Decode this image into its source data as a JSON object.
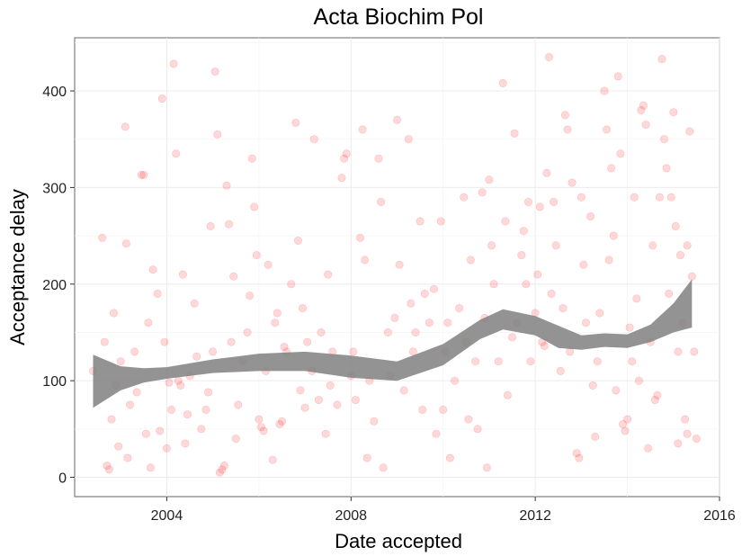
{
  "chart_data": {
    "type": "scatter",
    "title": "Acta Biochim Pol",
    "xlabel": "Date accepted",
    "ylabel": "Acceptance delay",
    "xlim": [
      2002.0,
      2016.0
    ],
    "ylim": [
      -20,
      455
    ],
    "x_ticks": [
      2004,
      2008,
      2012,
      2016
    ],
    "y_ticks": [
      0,
      100,
      200,
      300,
      400
    ],
    "grid": true,
    "legend": "none",
    "point_color": "#ff0000",
    "point_opacity": 0.15,
    "smooth_color": "#808080",
    "smooth": {
      "x": [
        2002.4,
        2003.0,
        2003.5,
        2004.0,
        2005.0,
        2006.0,
        2007.0,
        2008.0,
        2009.0,
        2010.0,
        2010.8,
        2011.3,
        2012.0,
        2012.5,
        2013.0,
        2013.5,
        2014.0,
        2014.5,
        2015.0,
        2015.4
      ],
      "lower": [
        72,
        90,
        98,
        102,
        108,
        110,
        110,
        103,
        100,
        116,
        143,
        153,
        147,
        134,
        132,
        135,
        134,
        140,
        150,
        155
      ],
      "upper": [
        127,
        115,
        113,
        114,
        122,
        128,
        130,
        126,
        120,
        138,
        163,
        174,
        167,
        157,
        147,
        149,
        148,
        158,
        180,
        205
      ]
    },
    "points": [
      [
        2002.4,
        110
      ],
      [
        2002.6,
        248
      ],
      [
        2002.65,
        140
      ],
      [
        2002.7,
        12
      ],
      [
        2002.75,
        8
      ],
      [
        2002.8,
        60
      ],
      [
        2002.85,
        170
      ],
      [
        2002.9,
        95
      ],
      [
        2002.95,
        32
      ],
      [
        2003.0,
        120
      ],
      [
        2003.1,
        363
      ],
      [
        2003.12,
        242
      ],
      [
        2003.15,
        20
      ],
      [
        2003.2,
        75
      ],
      [
        2003.3,
        130
      ],
      [
        2003.35,
        88
      ],
      [
        2003.45,
        313
      ],
      [
        2003.5,
        313
      ],
      [
        2003.55,
        45
      ],
      [
        2003.6,
        160
      ],
      [
        2003.65,
        10
      ],
      [
        2003.7,
        215
      ],
      [
        2003.8,
        190
      ],
      [
        2003.85,
        48
      ],
      [
        2003.9,
        392
      ],
      [
        2003.95,
        140
      ],
      [
        2004.0,
        30
      ],
      [
        2004.05,
        98
      ],
      [
        2004.1,
        70
      ],
      [
        2004.15,
        428
      ],
      [
        2004.2,
        335
      ],
      [
        2004.25,
        100
      ],
      [
        2004.3,
        95
      ],
      [
        2004.35,
        210
      ],
      [
        2004.4,
        35
      ],
      [
        2004.45,
        65
      ],
      [
        2004.5,
        105
      ],
      [
        2004.6,
        180
      ],
      [
        2004.65,
        125
      ],
      [
        2004.75,
        50
      ],
      [
        2004.85,
        70
      ],
      [
        2004.9,
        88
      ],
      [
        2004.95,
        260
      ],
      [
        2005.0,
        130
      ],
      [
        2005.05,
        420
      ],
      [
        2005.1,
        355
      ],
      [
        2005.15,
        5
      ],
      [
        2005.2,
        8
      ],
      [
        2005.25,
        12
      ],
      [
        2005.3,
        302
      ],
      [
        2005.35,
        262
      ],
      [
        2005.4,
        140
      ],
      [
        2005.45,
        208
      ],
      [
        2005.5,
        40
      ],
      [
        2005.55,
        75
      ],
      [
        2005.65,
        120
      ],
      [
        2005.75,
        150
      ],
      [
        2005.8,
        188
      ],
      [
        2005.85,
        330
      ],
      [
        2005.9,
        280
      ],
      [
        2005.95,
        230
      ],
      [
        2006.0,
        60
      ],
      [
        2006.05,
        52
      ],
      [
        2006.1,
        48
      ],
      [
        2006.15,
        110
      ],
      [
        2006.2,
        220
      ],
      [
        2006.3,
        18
      ],
      [
        2006.35,
        160
      ],
      [
        2006.4,
        170
      ],
      [
        2006.45,
        55
      ],
      [
        2006.5,
        58
      ],
      [
        2006.55,
        135
      ],
      [
        2006.6,
        130
      ],
      [
        2006.7,
        200
      ],
      [
        2006.8,
        367
      ],
      [
        2006.85,
        245
      ],
      [
        2006.9,
        90
      ],
      [
        2006.95,
        175
      ],
      [
        2007.0,
        72
      ],
      [
        2007.05,
        140
      ],
      [
        2007.15,
        110
      ],
      [
        2007.2,
        350
      ],
      [
        2007.3,
        80
      ],
      [
        2007.35,
        150
      ],
      [
        2007.45,
        45
      ],
      [
        2007.5,
        210
      ],
      [
        2007.55,
        95
      ],
      [
        2007.6,
        130
      ],
      [
        2007.7,
        75
      ],
      [
        2007.8,
        310
      ],
      [
        2007.85,
        330
      ],
      [
        2007.9,
        335
      ],
      [
        2008.0,
        105
      ],
      [
        2008.05,
        130
      ],
      [
        2008.1,
        80
      ],
      [
        2008.2,
        248
      ],
      [
        2008.25,
        360
      ],
      [
        2008.3,
        225
      ],
      [
        2008.35,
        20
      ],
      [
        2008.4,
        100
      ],
      [
        2008.5,
        58
      ],
      [
        2008.6,
        330
      ],
      [
        2008.65,
        285
      ],
      [
        2008.7,
        10
      ],
      [
        2008.8,
        150
      ],
      [
        2008.85,
        105
      ],
      [
        2008.95,
        165
      ],
      [
        2009.0,
        370
      ],
      [
        2009.05,
        220
      ],
      [
        2009.15,
        90
      ],
      [
        2009.25,
        350
      ],
      [
        2009.3,
        180
      ],
      [
        2009.35,
        130
      ],
      [
        2009.4,
        150
      ],
      [
        2009.5,
        265
      ],
      [
        2009.55,
        70
      ],
      [
        2009.6,
        190
      ],
      [
        2009.7,
        160
      ],
      [
        2009.8,
        195
      ],
      [
        2009.85,
        45
      ],
      [
        2009.95,
        265
      ],
      [
        2010.0,
        70
      ],
      [
        2010.05,
        130
      ],
      [
        2010.1,
        160
      ],
      [
        2010.15,
        20
      ],
      [
        2010.25,
        100
      ],
      [
        2010.35,
        175
      ],
      [
        2010.45,
        290
      ],
      [
        2010.5,
        140
      ],
      [
        2010.55,
        60
      ],
      [
        2010.6,
        225
      ],
      [
        2010.7,
        120
      ],
      [
        2010.75,
        50
      ],
      [
        2010.85,
        295
      ],
      [
        2010.9,
        165
      ],
      [
        2010.95,
        10
      ],
      [
        2011.0,
        308
      ],
      [
        2011.05,
        240
      ],
      [
        2011.1,
        200
      ],
      [
        2011.2,
        120
      ],
      [
        2011.3,
        408
      ],
      [
        2011.35,
        265
      ],
      [
        2011.4,
        85
      ],
      [
        2011.5,
        145
      ],
      [
        2011.55,
        356
      ],
      [
        2011.6,
        160
      ],
      [
        2011.7,
        230
      ],
      [
        2011.75,
        255
      ],
      [
        2011.8,
        200
      ],
      [
        2011.85,
        285
      ],
      [
        2011.9,
        120
      ],
      [
        2012.0,
        170
      ],
      [
        2012.05,
        210
      ],
      [
        2012.1,
        280
      ],
      [
        2012.15,
        140
      ],
      [
        2012.2,
        136
      ],
      [
        2012.25,
        315
      ],
      [
        2012.3,
        435
      ],
      [
        2012.35,
        190
      ],
      [
        2012.4,
        285
      ],
      [
        2012.45,
        240
      ],
      [
        2012.55,
        110
      ],
      [
        2012.6,
        175
      ],
      [
        2012.65,
        375
      ],
      [
        2012.7,
        360
      ],
      [
        2012.75,
        130
      ],
      [
        2012.8,
        305
      ],
      [
        2012.9,
        25
      ],
      [
        2012.95,
        20
      ],
      [
        2013.0,
        290
      ],
      [
        2013.05,
        220
      ],
      [
        2013.1,
        160
      ],
      [
        2013.2,
        270
      ],
      [
        2013.25,
        95
      ],
      [
        2013.3,
        42
      ],
      [
        2013.35,
        120
      ],
      [
        2013.4,
        170
      ],
      [
        2013.5,
        400
      ],
      [
        2013.55,
        360
      ],
      [
        2013.6,
        225
      ],
      [
        2013.65,
        320
      ],
      [
        2013.7,
        250
      ],
      [
        2013.75,
        90
      ],
      [
        2013.8,
        415
      ],
      [
        2013.85,
        335
      ],
      [
        2013.9,
        55
      ],
      [
        2013.95,
        48
      ],
      [
        2014.0,
        60
      ],
      [
        2014.05,
        155
      ],
      [
        2014.1,
        120
      ],
      [
        2014.15,
        290
      ],
      [
        2014.2,
        185
      ],
      [
        2014.25,
        100
      ],
      [
        2014.3,
        380
      ],
      [
        2014.35,
        385
      ],
      [
        2014.4,
        365
      ],
      [
        2014.45,
        30
      ],
      [
        2014.5,
        140
      ],
      [
        2014.55,
        240
      ],
      [
        2014.6,
        80
      ],
      [
        2014.65,
        85
      ],
      [
        2014.7,
        290
      ],
      [
        2014.75,
        433
      ],
      [
        2014.8,
        350
      ],
      [
        2014.85,
        320
      ],
      [
        2014.9,
        190
      ],
      [
        2014.95,
        290
      ],
      [
        2015.0,
        378
      ],
      [
        2015.05,
        260
      ],
      [
        2015.1,
        130
      ],
      [
        2015.15,
        230
      ],
      [
        2015.2,
        160
      ],
      [
        2015.25,
        60
      ],
      [
        2015.3,
        240
      ],
      [
        2015.35,
        358
      ],
      [
        2015.4,
        208
      ],
      [
        2015.45,
        130
      ],
      [
        2015.5,
        40
      ],
      [
        2015.3,
        45
      ],
      [
        2015.1,
        35
      ]
    ]
  }
}
